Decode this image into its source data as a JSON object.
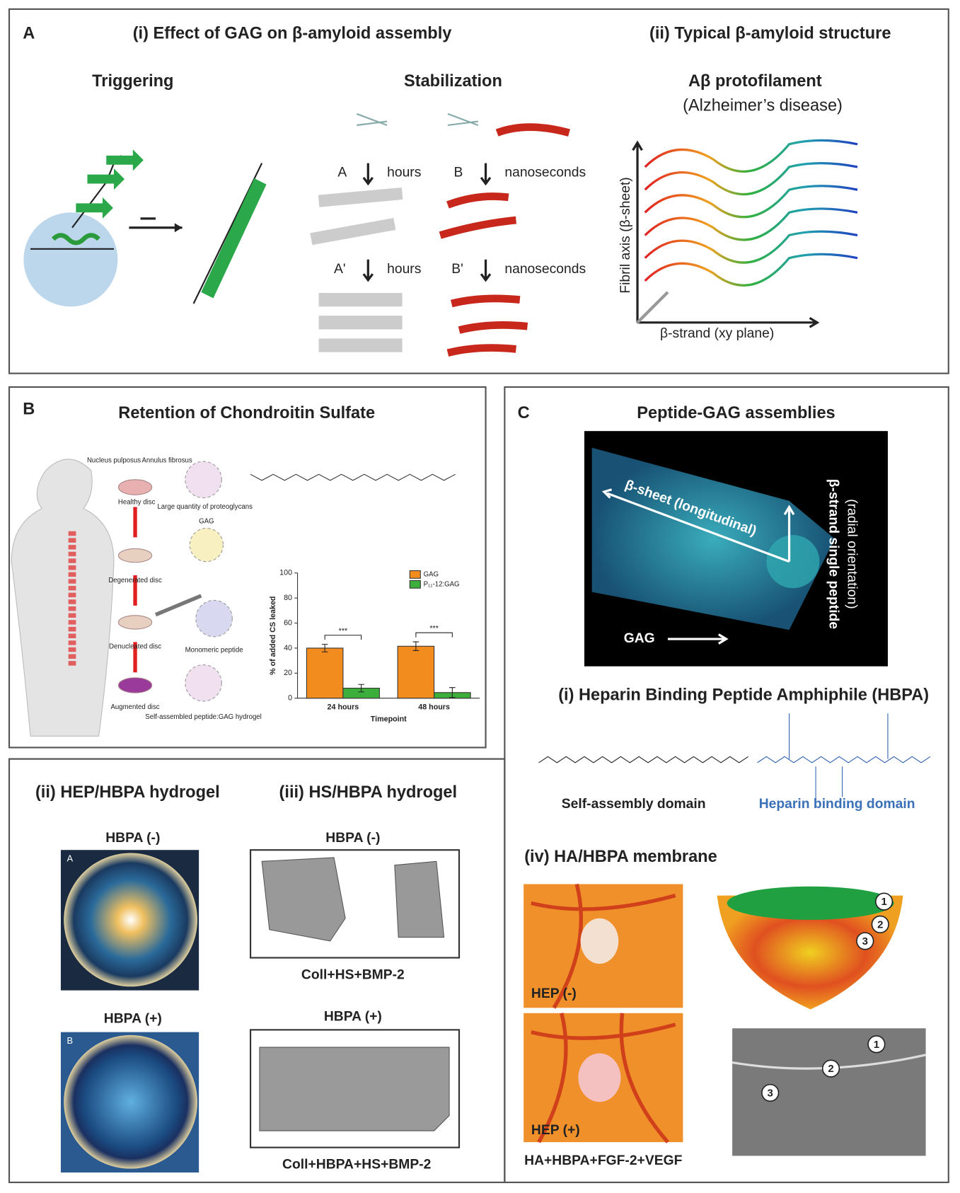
{
  "panel_a": {
    "letter": "A",
    "title_i": "(i) Effect of GAG on β-amyloid assembly",
    "title_ii": "(ii) Typical β-amyloid structure",
    "triggering": "Triggering",
    "stabilization": "Stabilization",
    "route_a": "A",
    "route_a_time": "hours",
    "route_b": "B",
    "route_b_time": "nanoseconds",
    "route_a2": "A'",
    "route_a2_time": "hours",
    "route_b2": "B'",
    "route_b2_time": "nanoseconds",
    "protofilament": "Aβ protofilament",
    "disease": "(Alzheimer’s disease)",
    "fibril_axis": "Fibril axis (β-sheet)",
    "strand_axis": "β-strand (xy plane)"
  },
  "panel_b": {
    "letter": "B",
    "title": "Retention of Chondroitin Sulfate",
    "nucleus": "Nucleus pulposus",
    "annulus": "Annulus fibrosus",
    "healthy": "Healthy disc",
    "proteoglycans": "Large quantity of proteoglycans",
    "degenerated": "Degenerated disc",
    "gag": "GAG",
    "denucleated": "Denucleated disc",
    "monomeric": "Monomeric peptide",
    "augmented": "Augmented disc",
    "hydrogel": "Self-assembled peptide:GAG hydrogel",
    "chart": {
      "type": "bar",
      "y_label": "% of added CS leaked",
      "x_label": "Timepoint",
      "categories": [
        "24 hours",
        "48 hours"
      ],
      "series": [
        {
          "name": "GAG",
          "color": "#f28c1e",
          "values": [
            40,
            41.5
          ],
          "errors": [
            3,
            3.5
          ]
        },
        {
          "name": "P₁₁-12:GAG",
          "color": "#3cae3c",
          "values": [
            8,
            4.5
          ],
          "errors": [
            3,
            4
          ]
        }
      ],
      "significance": [
        "***",
        "***"
      ],
      "ylim": [
        0,
        100
      ],
      "yticks": [
        0,
        20,
        40,
        60,
        80,
        100
      ]
    }
  },
  "panel_c": {
    "letter": "C",
    "title": "Peptide-GAG assemblies",
    "sheet": "β-sheet (longitudinal)",
    "strand": "β-strand single peptide",
    "radial": "(radial orientation)",
    "gag": "GAG",
    "hbpa_title": "(i) Heparin Binding Peptide Amphiphile (HBPA)",
    "self_assembly": "Self-assembly domain",
    "heparin_domain": "Heparin binding domain"
  },
  "panel_ii": {
    "title": "(ii) HEP/HBPA hydrogel",
    "minus": "HBPA (-)",
    "inset_a": "A",
    "plus": "HBPA (+)",
    "inset_b": "B"
  },
  "panel_iii": {
    "title": "(iii) HS/HBPA hydrogel",
    "minus": "HBPA (-)",
    "minus_caption": "Coll+HS+BMP-2",
    "plus": "HBPA (+)",
    "plus_caption": "Coll+HBPA+HS+BMP-2"
  },
  "panel_iv": {
    "title": "(iv) HA/HBPA membrane",
    "hep_minus": "HEP (-)",
    "hep_plus": "HEP (+)",
    "caption": "HA+HBPA+FGF-2+VEGF",
    "layers": [
      "1",
      "2",
      "3"
    ]
  }
}
